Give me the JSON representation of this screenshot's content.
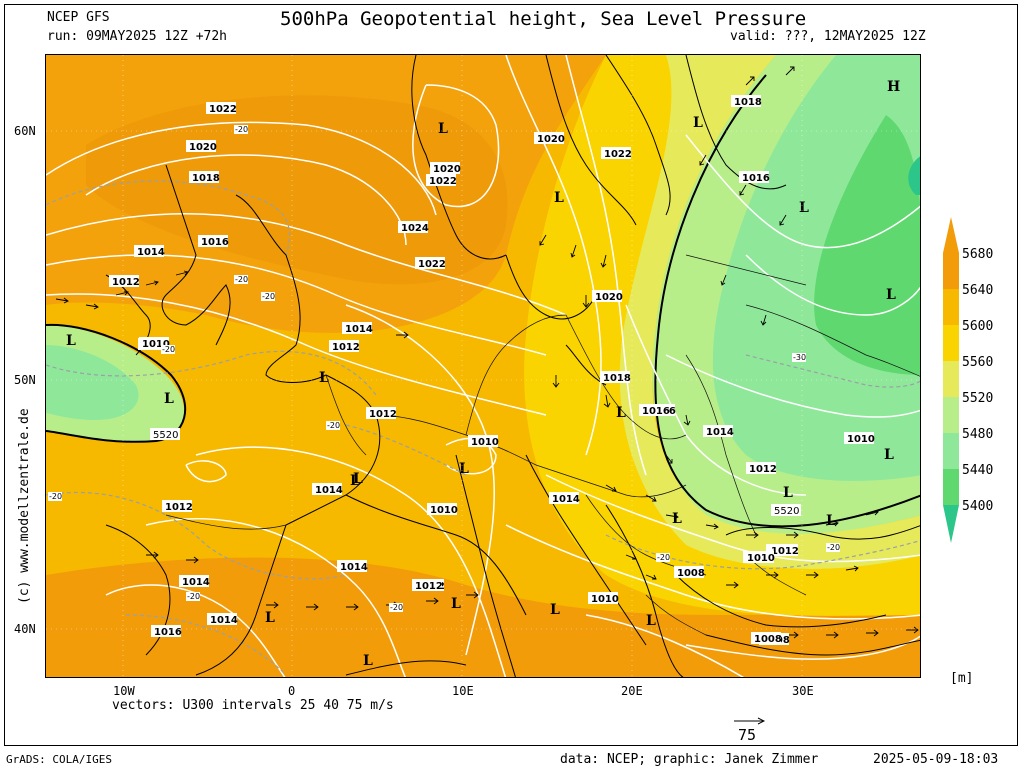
{
  "header": {
    "model": "NCEP GFS",
    "run": "run: 09MAY2025 12Z +72h",
    "title": "500hPa Geopotential height, Sea Level Pressure",
    "valid": "valid: ???, 12MAY2025 12Z"
  },
  "axes": {
    "lat_ticks": [
      "60N",
      "50N",
      "40N"
    ],
    "lon_ticks": [
      "10W",
      "0",
      "10E",
      "20E",
      "30E"
    ]
  },
  "vectors_note": "vectors: U300 intervals 25 40 75 m/s",
  "vector_ref": "75",
  "legend": {
    "unit": "[m]",
    "levels": [
      "5680",
      "5640",
      "5600",
      "5560",
      "5520",
      "5480",
      "5440",
      "5400"
    ],
    "colors": [
      "#f39c0a",
      "#f7b800",
      "#fad400",
      "#e6ea5a",
      "#b8ee8a",
      "#8fe89a",
      "#5fd870",
      "#2cc58a"
    ]
  },
  "watermark": "(c) www.modellzentrale.de",
  "footer": {
    "left": "GrADS: COLA/IGES",
    "center": "data: NCEP; graphic: Janek Zimmer",
    "right": "2025-05-09-18:03"
  },
  "map": {
    "pressure_labels": [
      "1022",
      "1020",
      "1018",
      "1016",
      "1014",
      "1012",
      "1010",
      "1020",
      "1022",
      "1024",
      "1022",
      "1020",
      "1022",
      "1020",
      "1018",
      "1016",
      "1014",
      "1012",
      "1010",
      "1012",
      "1014",
      "1012",
      "1010",
      "1014",
      "1012",
      "1010",
      "1008",
      "1016",
      "1014",
      "1012",
      "1010",
      "1012",
      "1014",
      "1016",
      "1018",
      "1016",
      "1010",
      "1012",
      "1008",
      "1014",
      "1010",
      "1014",
      "1012",
      "1010",
      "1008"
    ],
    "height_labels": [
      "5520",
      "5520"
    ],
    "temp_labels": [
      "-20",
      "-20",
      "-20",
      "-20",
      "-20",
      "-20",
      "-20",
      "-20",
      "-20",
      "-30",
      "-20"
    ],
    "pressure_centers": [
      "H",
      "L",
      "L",
      "L",
      "L",
      "L",
      "L",
      "L",
      "L",
      "L",
      "L",
      "L",
      "L",
      "L",
      "L",
      "L",
      "L",
      "L",
      "L",
      "L",
      "L",
      "L"
    ]
  }
}
